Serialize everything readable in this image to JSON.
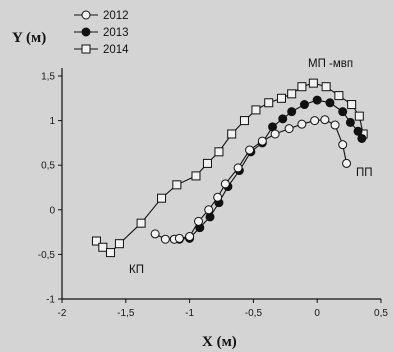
{
  "chart_data": {
    "type": "line",
    "xlabel": "X (м)",
    "ylabel": "Y (м)",
    "xlim": [
      -2,
      0.5
    ],
    "ylim": [
      -1,
      1.5
    ],
    "xticks": [
      -2,
      -1.5,
      -1,
      -0.5,
      0,
      0.5
    ],
    "yticks": [
      -1,
      -0.5,
      0,
      0.5,
      1,
      1.5
    ],
    "xtick_labels": [
      "-2",
      "-1,5",
      "-1",
      "-0,5",
      "0",
      "0,5"
    ],
    "ytick_labels": [
      "-1",
      "-0,5",
      "0",
      "0,5",
      "1",
      "1,5"
    ],
    "grid": false,
    "legend_position": "top-left",
    "series": [
      {
        "name": "2012",
        "marker": "open-circle",
        "x": [
          -1.27,
          -1.19,
          -1.12,
          -1.08,
          -1.0,
          -0.93,
          -0.85,
          -0.78,
          -0.72,
          -0.62,
          -0.53,
          -0.43,
          -0.33,
          -0.22,
          -0.12,
          -0.02,
          0.06,
          0.14,
          0.2,
          0.23
        ],
        "y": [
          -0.27,
          -0.33,
          -0.33,
          -0.32,
          -0.3,
          -0.13,
          0.0,
          0.14,
          0.29,
          0.47,
          0.67,
          0.77,
          0.85,
          0.91,
          0.96,
          1.0,
          1.01,
          0.95,
          0.73,
          0.52
        ]
      },
      {
        "name": "2013",
        "marker": "filled-circle",
        "x": [
          -1.12,
          -1.08,
          -1.0,
          -0.92,
          -0.84,
          -0.77,
          -0.7,
          -0.61,
          -0.52,
          -0.43,
          -0.35,
          -0.27,
          -0.2,
          -0.1,
          0.0,
          0.1,
          0.2,
          0.26,
          0.32,
          0.35
        ],
        "y": [
          -0.33,
          -0.33,
          -0.32,
          -0.2,
          -0.08,
          0.08,
          0.26,
          0.44,
          0.65,
          0.75,
          0.93,
          1.02,
          1.1,
          1.18,
          1.23,
          1.2,
          1.1,
          0.98,
          0.88,
          0.8
        ]
      },
      {
        "name": "2014",
        "marker": "open-square",
        "x": [
          -1.73,
          -1.68,
          -1.62,
          -1.55,
          -1.38,
          -1.22,
          -1.1,
          -0.95,
          -0.86,
          -0.77,
          -0.67,
          -0.57,
          -0.48,
          -0.38,
          -0.28,
          -0.2,
          -0.12,
          -0.03,
          0.07,
          0.17,
          0.27,
          0.33,
          0.36
        ],
        "y": [
          -0.35,
          -0.42,
          -0.48,
          -0.38,
          -0.15,
          0.13,
          0.28,
          0.38,
          0.52,
          0.65,
          0.85,
          1.0,
          1.12,
          1.2,
          1.25,
          1.3,
          1.38,
          1.42,
          1.38,
          1.28,
          1.18,
          1.05,
          0.85
        ]
      }
    ],
    "annotations": [
      "МП -мвп",
      "ПП",
      "КП"
    ]
  }
}
